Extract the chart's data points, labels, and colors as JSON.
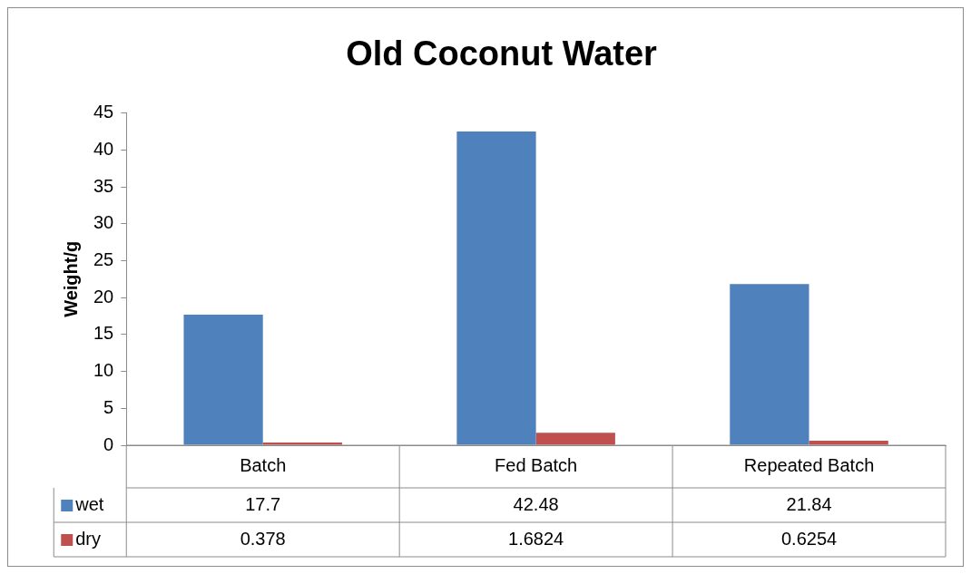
{
  "chart_data": {
    "type": "bar",
    "title": "Old Coconut Water",
    "ylabel": "Weight/g",
    "categories": [
      "Batch",
      "Fed Batch",
      "Repeated Batch"
    ],
    "series": [
      {
        "name": "wet",
        "color": "#4f81bd",
        "values": [
          17.7,
          42.48,
          21.84
        ]
      },
      {
        "name": "dry",
        "color": "#c0504d",
        "values": [
          0.378,
          1.6824,
          0.6254
        ]
      }
    ],
    "ylim": [
      0,
      45
    ],
    "yticks": [
      0,
      5,
      10,
      15,
      20,
      25,
      30,
      35,
      40,
      45
    ],
    "grid": false,
    "legend": "bottom",
    "data_labels": true
  }
}
